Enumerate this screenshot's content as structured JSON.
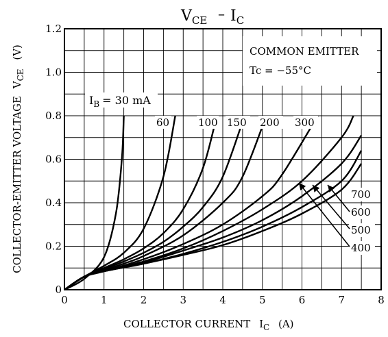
{
  "chart_data": {
    "type": "line",
    "title_main": "V",
    "title_main_sub": "CE",
    "title_dash": "–",
    "title_ic": "I",
    "title_ic_sub": "C",
    "xlabel_prefix": "COLLECTOR CURRENT",
    "xlabel_i": "I",
    "xlabel_sub": "C",
    "xlabel_unit": "(A)",
    "ylabel": "COLLECTOR-EMITTER VOLTAGE",
    "ylabel_v": "V",
    "ylabel_sub": "CE",
    "ylabel_unit": "(V)",
    "xlim": [
      0,
      8
    ],
    "ylim": [
      0,
      1.2
    ],
    "x_ticks": [
      "0",
      "1",
      "2",
      "3",
      "4",
      "5",
      "6",
      "7",
      "8"
    ],
    "y_ticks": [
      "0",
      "0.2",
      "0.4",
      "0.6",
      "0.8",
      "1.0",
      "1.2"
    ],
    "grid": true,
    "annotation_box": {
      "line1": "COMMON EMITTER",
      "line2": "Tc = −55°C"
    },
    "ib_label_prefix": "I",
    "ib_label_sub": "B",
    "ib_label_value": "= 30 mA",
    "series": [
      {
        "name": "30",
        "x": [
          0,
          0.5,
          1.0,
          1.3,
          1.45,
          1.5
        ],
        "y": [
          0,
          0.05,
          0.15,
          0.35,
          0.6,
          0.8
        ]
      },
      {
        "name": "60",
        "x": [
          0,
          0.5,
          1.0,
          1.5,
          2.0,
          2.5,
          2.8
        ],
        "y": [
          0,
          0.06,
          0.11,
          0.17,
          0.28,
          0.52,
          0.8
        ]
      },
      {
        "name": "100",
        "x": [
          0,
          0.5,
          1.0,
          1.5,
          2.0,
          2.5,
          3.0,
          3.5,
          3.85
        ],
        "y": [
          0,
          0.06,
          0.1,
          0.14,
          0.19,
          0.26,
          0.37,
          0.56,
          0.8
        ]
      },
      {
        "name": "150",
        "x": [
          0,
          0.5,
          1.0,
          1.5,
          2.0,
          2.5,
          3.0,
          3.5,
          4.0,
          4.55
        ],
        "y": [
          0,
          0.06,
          0.095,
          0.13,
          0.17,
          0.22,
          0.29,
          0.38,
          0.52,
          0.8
        ]
      },
      {
        "name": "200",
        "x": [
          0,
          0.5,
          1.0,
          1.5,
          2.0,
          3.0,
          4.0,
          4.5,
          5.1
        ],
        "y": [
          0,
          0.06,
          0.09,
          0.12,
          0.155,
          0.25,
          0.4,
          0.52,
          0.8
        ]
      },
      {
        "name": "300",
        "x": [
          0,
          0.5,
          1.0,
          2.0,
          3.0,
          4.0,
          5.0,
          5.5,
          6.4
        ],
        "y": [
          0,
          0.06,
          0.085,
          0.14,
          0.21,
          0.3,
          0.43,
          0.53,
          0.8
        ]
      },
      {
        "name": "400",
        "x": [
          0,
          0.5,
          1.0,
          2.0,
          3.0,
          4.0,
          5.0,
          6.0,
          7.0,
          7.3
        ],
        "y": [
          0,
          0.06,
          0.085,
          0.13,
          0.19,
          0.27,
          0.37,
          0.5,
          0.7,
          0.8
        ]
      },
      {
        "name": "500",
        "x": [
          0,
          0.5,
          1.0,
          2.0,
          3.0,
          4.0,
          5.0,
          6.0,
          7.0,
          7.5
        ],
        "y": [
          0,
          0.06,
          0.085,
          0.125,
          0.18,
          0.24,
          0.32,
          0.43,
          0.58,
          0.71
        ]
      },
      {
        "name": "600",
        "x": [
          0,
          0.5,
          1.0,
          2.0,
          3.0,
          4.0,
          5.0,
          6.0,
          7.0,
          7.5
        ],
        "y": [
          0,
          0.06,
          0.085,
          0.12,
          0.165,
          0.22,
          0.29,
          0.38,
          0.5,
          0.64
        ]
      },
      {
        "name": "700",
        "x": [
          0,
          0.5,
          1.0,
          2.0,
          3.0,
          4.0,
          5.0,
          6.0,
          7.0,
          7.5
        ],
        "y": [
          0,
          0.06,
          0.085,
          0.12,
          0.16,
          0.205,
          0.27,
          0.35,
          0.46,
          0.58
        ]
      }
    ],
    "curve_labels": [
      "60",
      "100",
      "150",
      "200",
      "300"
    ],
    "right_labels": [
      "700",
      "600",
      "500",
      "400"
    ]
  }
}
